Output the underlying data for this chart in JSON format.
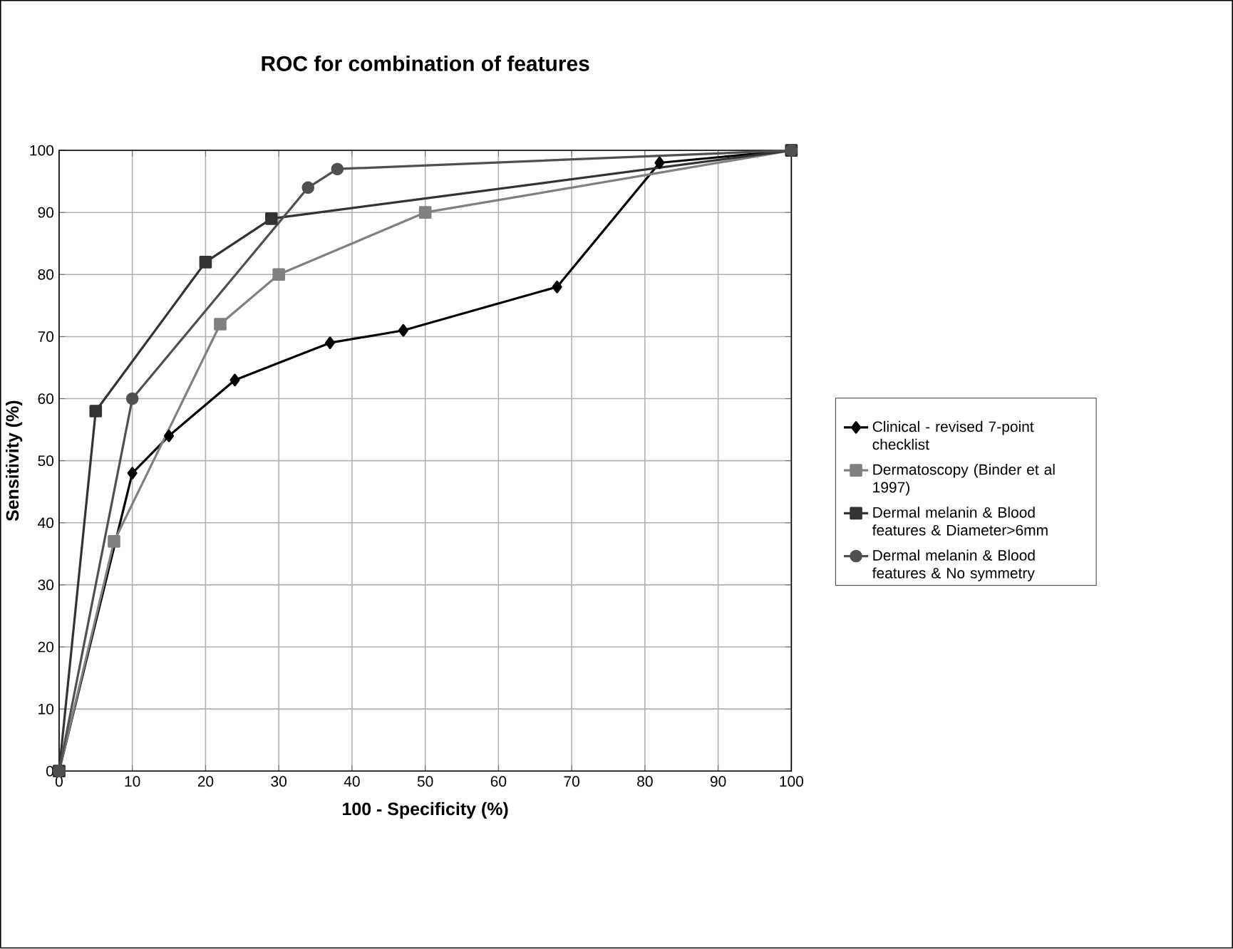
{
  "chart_data": {
    "type": "line",
    "title": "ROC for combination of features",
    "xlabel": "100 - Specificity (%)",
    "ylabel": "Sensitivity (%)",
    "xlim": [
      0,
      100
    ],
    "ylim": [
      0,
      100
    ],
    "xticks": [
      0,
      10,
      20,
      30,
      40,
      50,
      60,
      70,
      80,
      90,
      100
    ],
    "yticks": [
      0,
      10,
      20,
      30,
      40,
      50,
      60,
      70,
      80,
      90,
      100
    ],
    "grid": true,
    "legend": "right",
    "series": [
      {
        "name": "Clinical - revised 7-point checklist",
        "color": "#000000",
        "marker": "diamond",
        "x": [
          0,
          10,
          15,
          24,
          37,
          47,
          68,
          82,
          100
        ],
        "values": [
          0,
          48,
          54,
          63,
          69,
          71,
          78,
          98,
          100
        ]
      },
      {
        "name": "Dermatoscopy (Binder et al 1997)",
        "color": "#808080",
        "marker": "square",
        "x": [
          0,
          7.5,
          22,
          30,
          50,
          100
        ],
        "values": [
          0,
          37,
          72,
          80,
          90,
          100
        ]
      },
      {
        "name": "Dermal melanin & Blood features & Diameter>6mm",
        "color": "#333333",
        "marker": "square",
        "x": [
          0,
          5,
          20,
          29,
          100
        ],
        "values": [
          0,
          58,
          82,
          89,
          100
        ]
      },
      {
        "name": "Dermal melanin & Blood features & No symmetry",
        "color": "#505050",
        "marker": "circle",
        "x": [
          0,
          10,
          34,
          38,
          100
        ],
        "values": [
          0,
          60,
          94,
          97,
          100
        ]
      }
    ]
  }
}
